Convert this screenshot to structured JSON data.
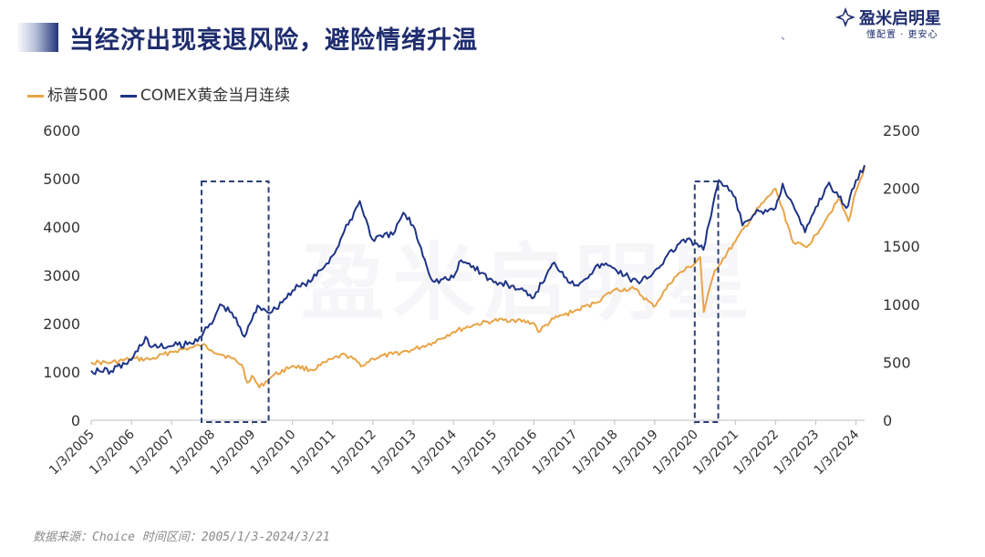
{
  "header": {
    "title": "当经济出现衰退风险，避险情绪升温",
    "logo_name": "盈米启明星",
    "logo_slogan": "懂配置 · 更安心",
    "dot": "、"
  },
  "watermark": "盈米启明星",
  "footer": {
    "source": "数据来源：Choice 时间区间：2005/1/3-2024/3/21"
  },
  "colors": {
    "sp500": "#e8a447",
    "gold": "#1d3386",
    "box": "#2b3f75",
    "axis": "#bfbfbf"
  },
  "chart_data": {
    "type": "line",
    "legend": "top-left",
    "y_left": {
      "min": 0,
      "max": 6000,
      "ticks": [
        "0",
        "1000",
        "2000",
        "3000",
        "4000",
        "5000",
        "6000"
      ]
    },
    "y_right": {
      "min": 0,
      "max": 2500,
      "ticks": [
        "0",
        "500",
        "1000",
        "1500",
        "2000",
        "2500"
      ]
    },
    "x_ticks": [
      "1/3/2005",
      "1/3/2006",
      "1/3/2007",
      "1/3/2008",
      "1/3/2009",
      "1/3/2010",
      "1/3/2011",
      "1/3/2012",
      "1/3/2013",
      "1/3/2014",
      "1/3/2015",
      "1/3/2016",
      "1/3/2017",
      "1/3/2018",
      "1/3/2019",
      "1/3/2020",
      "1/3/2021",
      "1/3/2022",
      "1/3/2023",
      "1/3/2024"
    ],
    "x_range": [
      "2005-01-03",
      "2024-03-21"
    ],
    "highlight_ranges": [
      {
        "from": "2007-10-01",
        "to": "2009-06-01"
      },
      {
        "from": "2020-01-01",
        "to": "2020-08-01"
      }
    ],
    "series": [
      {
        "name": "标普500",
        "axis": "left",
        "x": [
          "2005-01-03",
          "2005-07-01",
          "2006-01-03",
          "2006-07-01",
          "2007-01-03",
          "2007-07-01",
          "2007-10-09",
          "2008-01-02",
          "2008-07-01",
          "2008-10-01",
          "2008-11-20",
          "2009-01-02",
          "2009-03-09",
          "2009-07-01",
          "2010-01-04",
          "2010-07-01",
          "2011-01-03",
          "2011-04-29",
          "2011-10-03",
          "2012-01-03",
          "2012-07-02",
          "2013-01-02",
          "2013-07-01",
          "2014-01-02",
          "2014-07-01",
          "2015-01-02",
          "2015-07-01",
          "2016-01-04",
          "2016-02-11",
          "2016-07-01",
          "2017-01-03",
          "2017-07-03",
          "2018-01-02",
          "2018-07-02",
          "2018-12-24",
          "2019-07-01",
          "2020-01-02",
          "2020-02-19",
          "2020-03-23",
          "2020-07-01",
          "2021-01-04",
          "2021-07-01",
          "2022-01-03",
          "2022-06-16",
          "2022-10-12",
          "2023-01-03",
          "2023-07-31",
          "2023-10-27",
          "2024-01-02",
          "2024-03-21"
        ],
        "values": [
          1200,
          1190,
          1270,
          1260,
          1420,
          1500,
          1560,
          1450,
          1280,
          1150,
          780,
          920,
          680,
          910,
          1130,
          1040,
          1270,
          1360,
          1130,
          1280,
          1370,
          1460,
          1610,
          1830,
          1970,
          2060,
          2080,
          2010,
          1830,
          2100,
          2260,
          2420,
          2700,
          2720,
          2350,
          2960,
          3250,
          3380,
          2240,
          3100,
          3700,
          4300,
          4790,
          3670,
          3580,
          3840,
          4590,
          4120,
          4740,
          5240
        ]
      },
      {
        "name": "COMEX黄金当月连续",
        "axis": "right",
        "x": [
          "2005-01-03",
          "2005-07-01",
          "2006-01-03",
          "2006-05-12",
          "2006-07-01",
          "2007-01-03",
          "2007-07-01",
          "2008-01-02",
          "2008-03-17",
          "2008-07-01",
          "2008-10-24",
          "2009-01-02",
          "2009-02-20",
          "2009-07-01",
          "2010-01-04",
          "2010-07-01",
          "2011-01-03",
          "2011-09-06",
          "2011-12-29",
          "2012-07-02",
          "2012-10-05",
          "2013-01-02",
          "2013-06-28",
          "2014-01-02",
          "2014-03-14",
          "2014-07-01",
          "2015-01-02",
          "2015-07-01",
          "2015-12-17",
          "2016-07-06",
          "2017-01-03",
          "2017-09-08",
          "2018-01-02",
          "2018-08-16",
          "2019-01-02",
          "2019-09-04",
          "2020-01-02",
          "2020-03-19",
          "2020-08-06",
          "2021-01-04",
          "2021-03-08",
          "2021-07-01",
          "2022-01-03",
          "2022-03-08",
          "2022-09-28",
          "2023-01-03",
          "2023-05-04",
          "2023-10-06",
          "2024-01-02",
          "2024-03-21"
        ],
        "values": [
          428,
          425,
          520,
          720,
          630,
          640,
          660,
          830,
          1000,
          930,
          720,
          870,
          990,
          935,
          1120,
          1210,
          1420,
          1890,
          1560,
          1600,
          1790,
          1680,
          1200,
          1230,
          1380,
          1330,
          1190,
          1160,
          1050,
          1360,
          1160,
          1350,
          1310,
          1180,
          1290,
          1550,
          1530,
          1470,
          2070,
          1920,
          1680,
          1780,
          1830,
          2040,
          1620,
          1840,
          2050,
          1830,
          2070,
          2200
        ]
      }
    ]
  }
}
